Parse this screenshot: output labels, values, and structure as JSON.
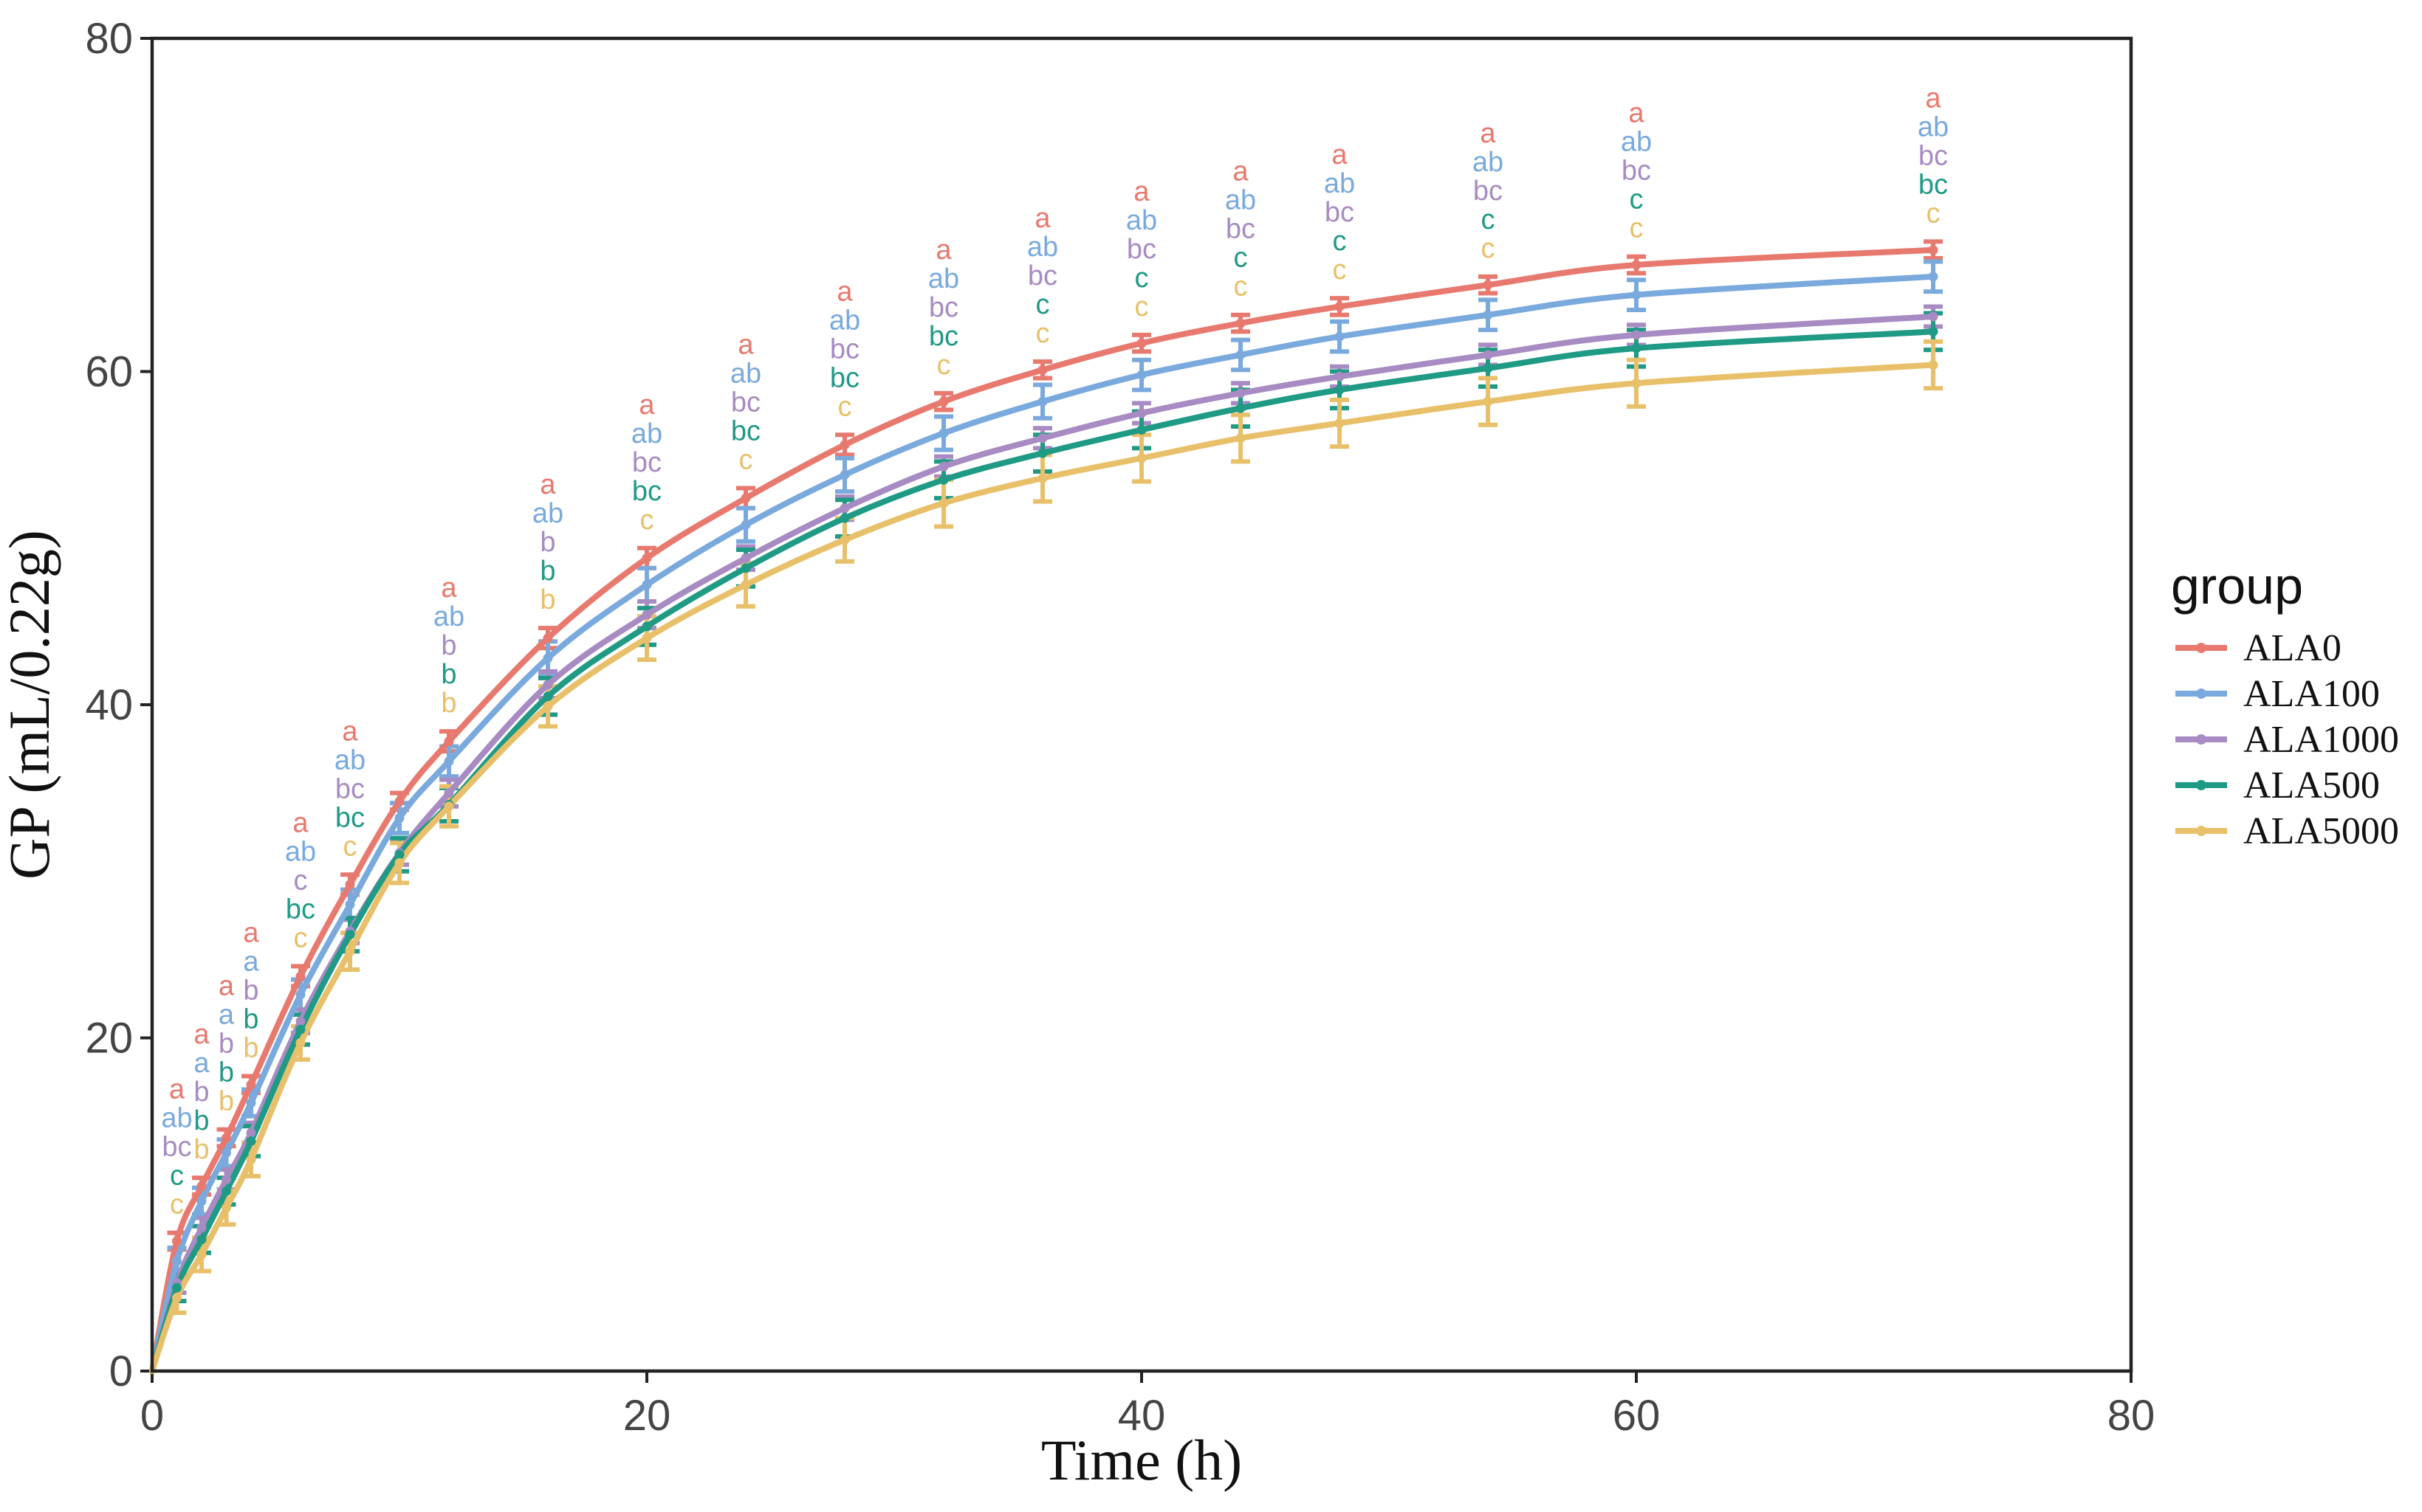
{
  "chart_data": {
    "type": "line",
    "title": "",
    "xlabel": "Time (h)",
    "ylabel": "GP (mL/0.22g)",
    "xlim": [
      0,
      80
    ],
    "ylim": [
      0,
      80
    ],
    "xticks": [
      "0",
      "20",
      "40",
      "60",
      "80"
    ],
    "yticks": [
      "0",
      "20",
      "40",
      "60",
      "80"
    ],
    "grid": false,
    "legend_title": "group",
    "legend_position": "right",
    "x": [
      0,
      1,
      2,
      3,
      4,
      6,
      8,
      10,
      12,
      16,
      20,
      24,
      28,
      32,
      36,
      40,
      44,
      48,
      54,
      60,
      72
    ],
    "series": [
      {
        "name": "ALA0",
        "color": "#E8796E",
        "values": [
          0,
          7.8,
          11.1,
          14.0,
          17.2,
          23.7,
          29.2,
          34.2,
          37.8,
          44.0,
          48.8,
          52.4,
          55.6,
          58.2,
          60.1,
          61.7,
          62.9,
          63.9,
          65.2,
          66.4,
          67.3
        ],
        "errors": [
          0,
          0.5,
          0.5,
          0.5,
          0.5,
          0.6,
          0.6,
          0.5,
          0.6,
          0.6,
          0.6,
          0.6,
          0.6,
          0.5,
          0.5,
          0.5,
          0.5,
          0.5,
          0.5,
          0.5,
          0.5
        ],
        "labels": [
          "",
          "a",
          "a",
          "a",
          "a",
          "a",
          "a",
          "",
          "a",
          "a",
          "a",
          "a",
          "a",
          "a",
          "a",
          "a",
          "a",
          "a",
          "a",
          "a",
          "a"
        ]
      },
      {
        "name": "ALA100",
        "color": "#7AAADD",
        "values": [
          0,
          6.6,
          10.2,
          13.1,
          16.1,
          22.6,
          28.0,
          33.2,
          36.6,
          42.8,
          47.2,
          50.8,
          53.8,
          56.3,
          58.2,
          59.8,
          61.0,
          62.1,
          63.4,
          64.6,
          65.7
        ],
        "errors": [
          0,
          0.8,
          0.8,
          0.8,
          0.8,
          0.9,
          0.9,
          0.9,
          0.9,
          1.0,
          1.0,
          1.0,
          1.0,
          1.0,
          1.0,
          0.9,
          0.9,
          0.9,
          0.9,
          0.9,
          0.9
        ],
        "labels": [
          "",
          "ab",
          "a",
          "a",
          "a",
          "ab",
          "ab",
          "",
          "ab",
          "ab",
          "ab",
          "ab",
          "ab",
          "ab",
          "ab",
          "ab",
          "ab",
          "ab",
          "ab",
          "ab",
          "ab"
        ]
      },
      {
        "name": "ALA1000",
        "color": "#A78BC2",
        "values": [
          0,
          5.3,
          8.6,
          11.5,
          14.3,
          21.0,
          26.4,
          31.1,
          34.7,
          41.2,
          45.4,
          48.8,
          51.8,
          54.3,
          56.0,
          57.5,
          58.7,
          59.7,
          61.0,
          62.2,
          63.3
        ],
        "errors": [
          0,
          0.6,
          0.6,
          0.6,
          0.6,
          0.7,
          0.7,
          0.7,
          0.8,
          0.8,
          0.8,
          0.7,
          0.7,
          0.6,
          0.6,
          0.6,
          0.6,
          0.6,
          0.6,
          0.6,
          0.6
        ],
        "labels": [
          "",
          "bc",
          "b",
          "b",
          "b",
          "c",
          "bc",
          "",
          "b",
          "b",
          "bc",
          "bc",
          "bc",
          "bc",
          "bc",
          "bc",
          "bc",
          "bc",
          "bc",
          "bc",
          "bc"
        ]
      },
      {
        "name": "ALA500",
        "color": "#1F9A85",
        "values": [
          0,
          5.0,
          7.9,
          10.8,
          13.8,
          20.5,
          26.2,
          31.0,
          34.0,
          40.5,
          44.7,
          48.2,
          51.2,
          53.5,
          55.1,
          56.5,
          57.8,
          58.9,
          60.2,
          61.4,
          62.4
        ],
        "errors": [
          0,
          0.8,
          0.8,
          0.8,
          0.9,
          0.9,
          1.0,
          1.0,
          1.0,
          1.1,
          1.1,
          1.1,
          1.1,
          1.1,
          1.1,
          1.1,
          1.1,
          1.1,
          1.1,
          1.1,
          1.1
        ],
        "labels": [
          "",
          "c",
          "b",
          "b",
          "b",
          "bc",
          "bc",
          "",
          "b",
          "b",
          "bc",
          "bc",
          "bc",
          "bc",
          "c",
          "c",
          "c",
          "c",
          "c",
          "c",
          "bc"
        ]
      },
      {
        "name": "ALA5000",
        "color": "#E8C06A",
        "values": [
          0,
          4.4,
          7.0,
          9.8,
          12.7,
          19.7,
          25.2,
          30.5,
          33.9,
          39.9,
          44.0,
          47.2,
          49.9,
          52.1,
          53.6,
          54.8,
          56.0,
          56.9,
          58.2,
          59.3,
          60.4
        ],
        "errors": [
          0,
          0.9,
          1.0,
          1.0,
          1.0,
          1.0,
          1.1,
          1.2,
          1.2,
          1.2,
          1.3,
          1.3,
          1.3,
          1.4,
          1.4,
          1.4,
          1.4,
          1.4,
          1.4,
          1.4,
          1.4
        ],
        "labels": [
          "",
          "c",
          "b",
          "b",
          "b",
          "c",
          "c",
          "",
          "b",
          "b",
          "c",
          "c",
          "c",
          "c",
          "c",
          "c",
          "c",
          "c",
          "c",
          "c",
          "c"
        ]
      }
    ]
  }
}
